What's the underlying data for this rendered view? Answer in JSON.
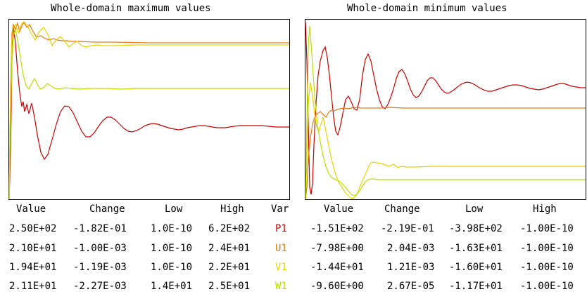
{
  "panels": {
    "max_title": "Whole-domain maximum values",
    "min_title": "Whole-domain minimum values"
  },
  "colors": {
    "P1": "#cc0000",
    "U1": "#e87810",
    "V1": "#e8d400",
    "W1": "#b8e000",
    "frame": "#000000"
  },
  "headers": {
    "value": "Value",
    "change": "Change",
    "low": "Low",
    "high": "High",
    "var": "Var"
  },
  "max_table": [
    {
      "value": "2.50E+02",
      "change": "-1.82E-01",
      "low": "1.0E-10",
      "high": "6.2E+02",
      "var": "P1"
    },
    {
      "value": "2.10E+01",
      "change": "-1.00E-03",
      "low": "1.0E-10",
      "high": "2.4E+01",
      "var": "U1"
    },
    {
      "value": "1.94E+01",
      "change": "-1.19E-03",
      "low": "1.0E-10",
      "high": "2.2E+01",
      "var": "V1"
    },
    {
      "value": "2.11E+01",
      "change": "-2.27E-03",
      "low": "1.4E+01",
      "high": "2.5E+01",
      "var": "W1"
    }
  ],
  "min_table": [
    {
      "value": "-1.51E+02",
      "change": "-2.19E-01",
      "low": "-3.98E+02",
      "high": "-1.00E-10"
    },
    {
      "value": "-7.98E+00",
      "change": "2.04E-03",
      "low": "-1.63E+01",
      "high": "-1.00E-10"
    },
    {
      "value": "-1.44E+01",
      "change": "1.21E-03",
      "low": "-1.60E+01",
      "high": "-1.00E-10"
    },
    {
      "value": "-9.60E+00",
      "change": "2.67E-05",
      "low": "-1.17E+01",
      "high": "-1.00E-10"
    }
  ]
}
